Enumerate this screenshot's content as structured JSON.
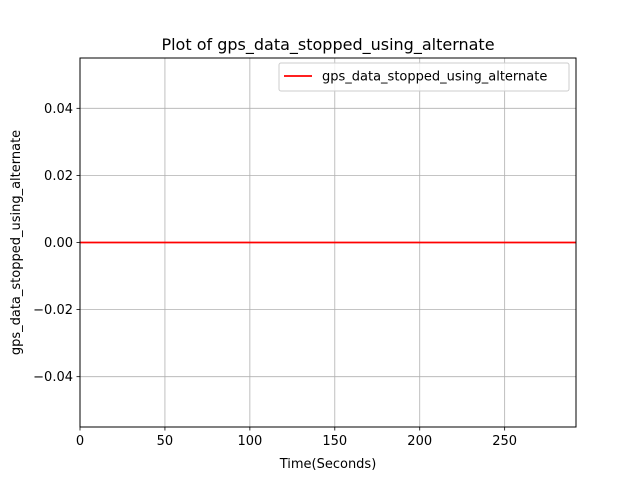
{
  "chart_data": {
    "type": "line",
    "title": "Plot of gps_data_stopped_using_alternate",
    "xlabel": "Time(Seconds)",
    "ylabel": "gps_data_stopped_using_alternate",
    "xlim": [
      0,
      292
    ],
    "ylim": [
      -0.055,
      0.055
    ],
    "xticks": [
      0,
      50,
      100,
      150,
      200,
      250
    ],
    "yticks": [
      -0.04,
      -0.02,
      0.0,
      0.02,
      0.04
    ],
    "ytick_labels": [
      "−0.04",
      "−0.02",
      "0.00",
      "0.02",
      "0.04"
    ],
    "grid": true,
    "legend_position": "upper-right",
    "series": [
      {
        "name": "gps_data_stopped_using_alternate",
        "color": "#ff0000",
        "x": [
          0,
          292
        ],
        "y": [
          0,
          0
        ]
      }
    ]
  }
}
